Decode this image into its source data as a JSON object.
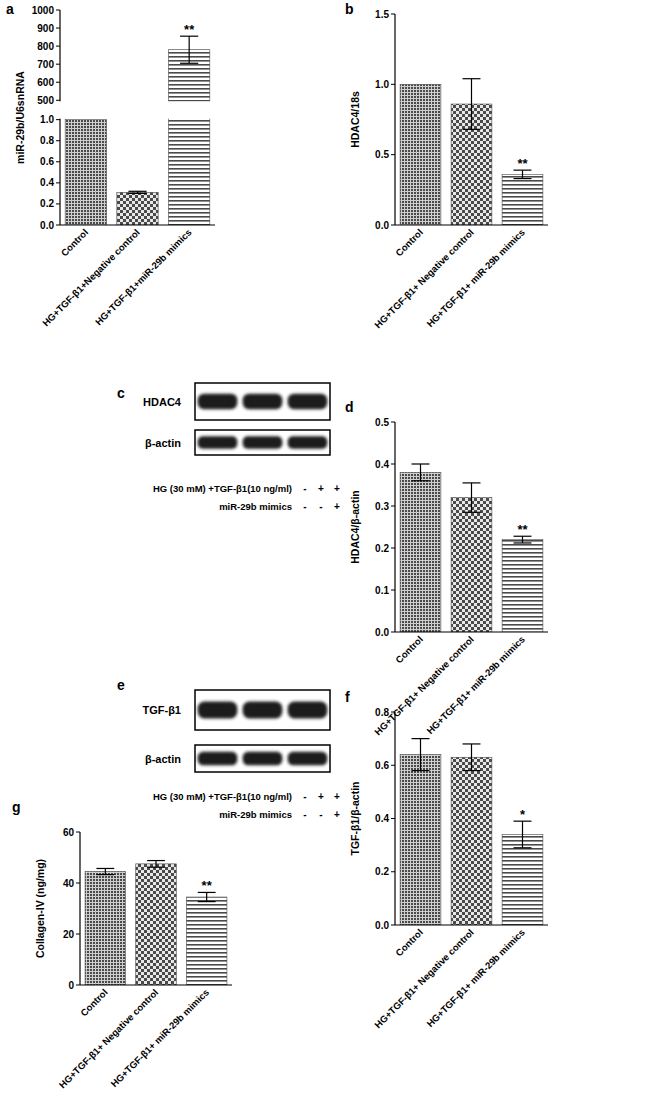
{
  "chart_data": [
    {
      "type": "bar",
      "title": "a",
      "ylabel": "miR-29b/U6snRNA",
      "categories": [
        "Control",
        "HG+TGF-β1+Negative control",
        "HG+TGF-β1+miR-29b mimics"
      ],
      "values": [
        1.0,
        0.31,
        780
      ],
      "errors": [
        null,
        0.01,
        75
      ],
      "significance": [
        null,
        null,
        "**"
      ],
      "colors": [
        "#4a4a4a",
        "#4a4a4a",
        "#4a4a4a"
      ],
      "ylim": [
        0,
        1000
      ],
      "ybreak": [
        1,
        500
      ],
      "yticks": [
        {
          "value": 0,
          "label": "0.0"
        },
        {
          "value": 0.2,
          "label": "0.2"
        },
        {
          "value": 0.4,
          "label": "0.4"
        },
        {
          "value": 0.6,
          "label": "0.6"
        },
        {
          "value": 0.8,
          "label": "0.8"
        },
        {
          "value": 1,
          "label": "1.0"
        },
        500,
        600,
        700,
        800,
        900,
        1000
      ]
    },
    {
      "type": "bar",
      "title": "b",
      "ylabel": "HDAC4/18s",
      "categories": [
        "Control",
        "HG+TGF-β1+ Negative control",
        "HG+TGF-β1+ miR-29b mimics"
      ],
      "values": [
        1.0,
        0.86,
        0.36
      ],
      "errors": [
        null,
        0.18,
        0.03
      ],
      "significance": [
        null,
        null,
        "**"
      ],
      "colors": [
        "#4a4a4a",
        "#4a4a4a",
        "#4a4a4a"
      ],
      "ylim": [
        0,
        1.5
      ],
      "yticks": [
        {
          "value": 0,
          "label": "0.0"
        },
        {
          "value": 0.5,
          "label": "0.5"
        },
        {
          "value": 1,
          "label": "1.0"
        },
        1.5
      ]
    },
    {
      "type": "blot",
      "title": "c",
      "bands": [
        "HDAC4",
        "β-actin"
      ],
      "conditions": [
        {
          "label": "HG (30 mM) +TGF-β1(10 ng/ml)",
          "lanes": [
            "-",
            "+",
            "+"
          ]
        },
        {
          "label": "miR-29b mimics",
          "lanes": [
            "-",
            "-",
            "+"
          ]
        }
      ]
    },
    {
      "type": "bar",
      "title": "d",
      "ylabel": "HDAC4/β-actin",
      "categories": [
        "Control",
        "HG+TGF-β1+ Negative control",
        "HG+TGF-β1+ miR-29b mimics"
      ],
      "values": [
        0.38,
        0.32,
        0.22
      ],
      "errors": [
        0.02,
        0.035,
        0.008
      ],
      "significance": [
        null,
        null,
        "**"
      ],
      "colors": [
        "#4a4a4a",
        "#4a4a4a",
        "#4a4a4a"
      ],
      "ylim": [
        0,
        0.5
      ],
      "yticks": [
        {
          "value": 0,
          "label": "0.0"
        },
        0.1,
        0.2,
        0.3,
        0.4,
        0.5
      ]
    },
    {
      "type": "blot",
      "title": "e",
      "bands": [
        "TGF-β1",
        "β-actin"
      ],
      "conditions": [
        {
          "label": "HG (30 mM) +TGF-β1(10 ng/ml)",
          "lanes": [
            "-",
            "+",
            "+"
          ]
        },
        {
          "label": "miR-29b mimics",
          "lanes": [
            "-",
            "-",
            "+"
          ]
        }
      ]
    },
    {
      "type": "bar",
      "title": "f",
      "ylabel": "TGF-β1/β-actin",
      "categories": [
        "Control",
        "HG+TGF-β1+ Negative control",
        "HG+TGF-β1+ miR-29b mimics"
      ],
      "values": [
        0.64,
        0.63,
        0.34
      ],
      "errors": [
        0.06,
        0.05,
        0.05
      ],
      "significance": [
        null,
        null,
        "*"
      ],
      "colors": [
        "#4a4a4a",
        "#4a4a4a",
        "#4a4a4a"
      ],
      "ylim": [
        0,
        0.8
      ],
      "yticks": [
        {
          "value": 0,
          "label": "0.0"
        },
        0.2,
        0.4,
        0.6,
        0.8
      ]
    },
    {
      "type": "bar",
      "title": "g",
      "ylabel": "Collagen-IV (ng/mg)",
      "categories": [
        "Control",
        "HG+TGF-β1+ Negative control",
        "HG+TGF-β1+ miR-29b mimics"
      ],
      "values": [
        44.5,
        47.5,
        34.5
      ],
      "errors": [
        1.2,
        1.3,
        1.8
      ],
      "significance": [
        null,
        null,
        "**"
      ],
      "colors": [
        "#4a4a4a",
        "#4a4a4a",
        "#4a4a4a"
      ],
      "ylim": [
        0,
        60
      ],
      "yticks": [
        0,
        20,
        40,
        60
      ]
    }
  ]
}
